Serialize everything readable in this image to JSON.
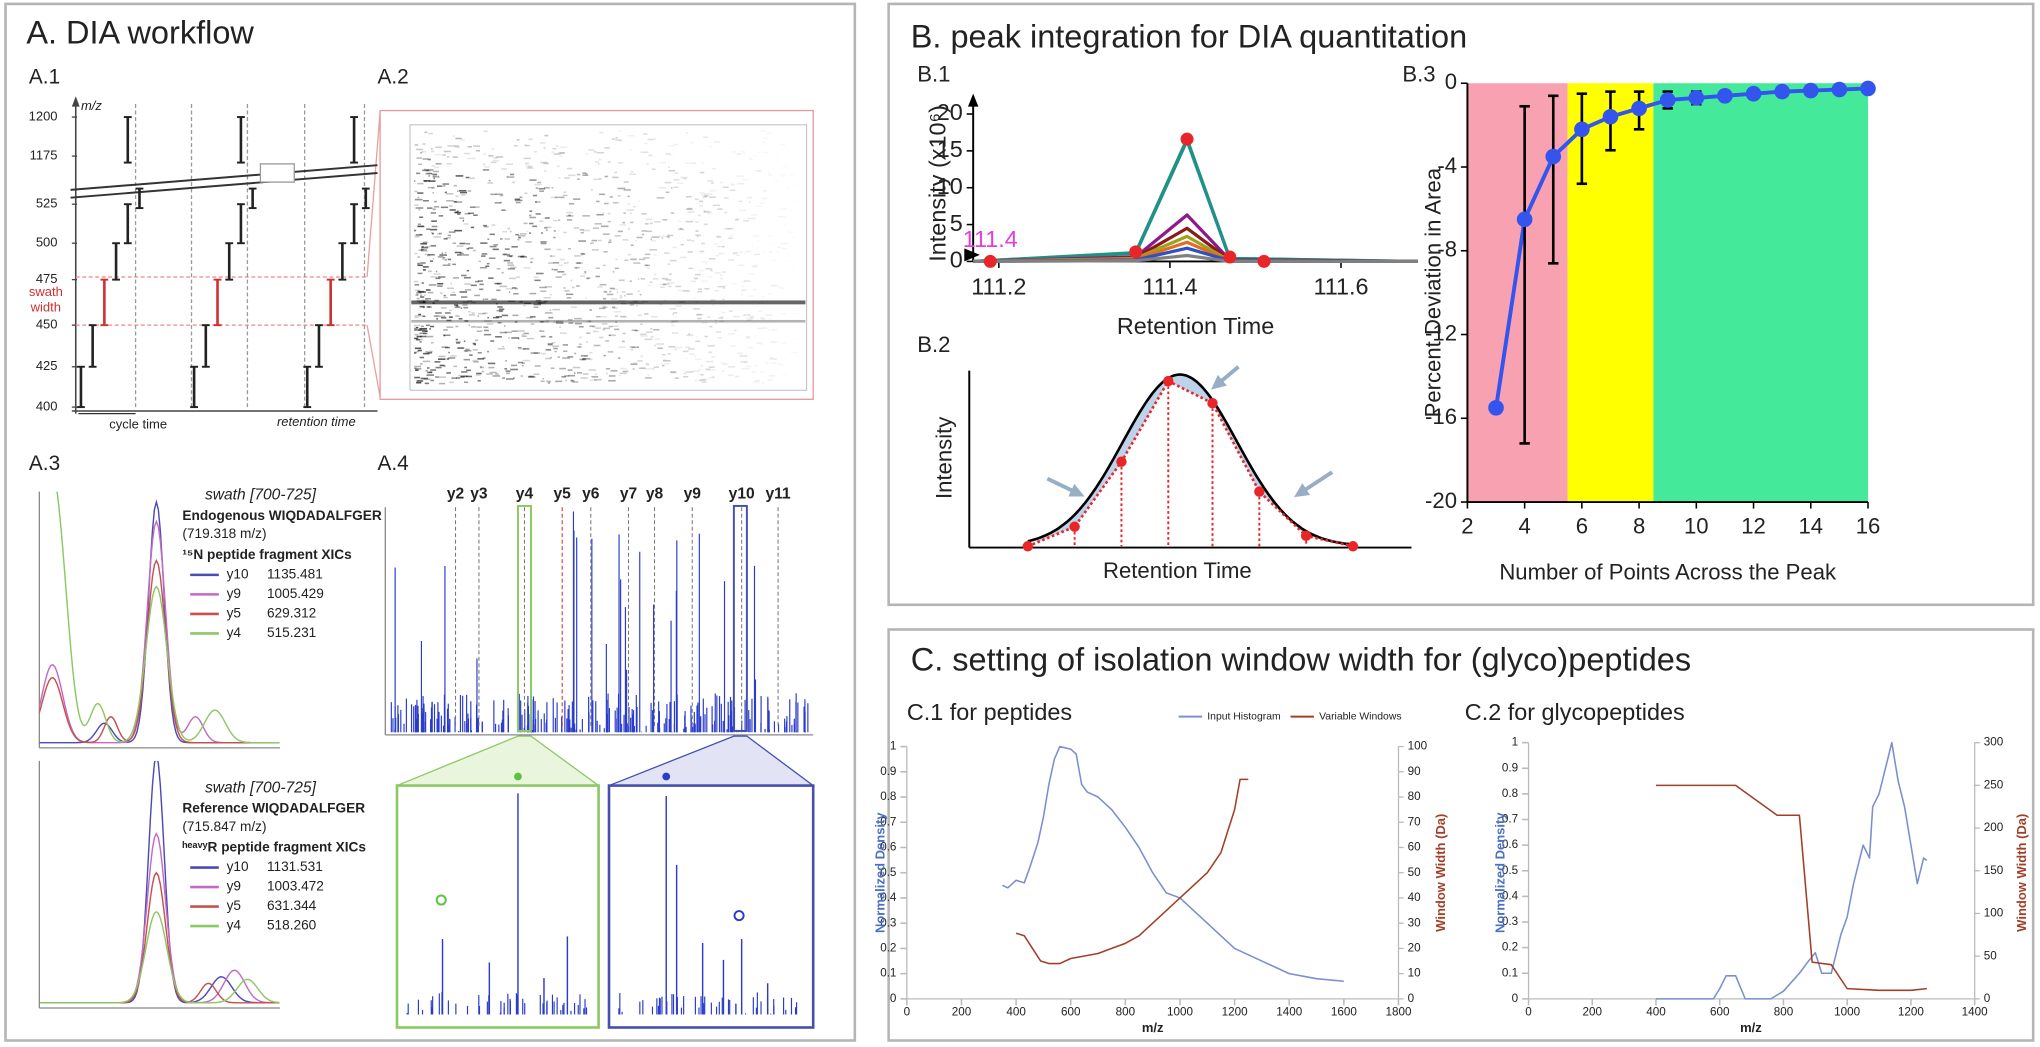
{
  "panels": {
    "A": {
      "title": "A. DIA workflow",
      "labels": [
        "A.1",
        "A.2",
        "A.3",
        "A.4"
      ],
      "a1": {
        "axis_label": "m/z",
        "yticks": [
          400,
          425,
          450,
          475,
          500,
          525,
          1175,
          1200
        ],
        "swath": [
          "swath",
          "width"
        ],
        "cycle": "cycle time",
        "rt": "retention time"
      },
      "a3": [
        {
          "swath": "swath [700-725]",
          "peptide": "Endogenous WIQDADALFGER",
          "mz": "(719.318 m/z)",
          "xics": "¹⁵N peptide fragment XICs",
          "legend": [
            {
              "ion": "y10",
              "mz": "1135.481",
              "color": "#4b4bb5"
            },
            {
              "ion": "y9",
              "mz": "1005.429",
              "color": "#c46ac4"
            },
            {
              "ion": "y5",
              "mz": "629.312",
              "color": "#c4524f"
            },
            {
              "ion": "y4",
              "mz": "515.231",
              "color": "#8cc864"
            }
          ]
        },
        {
          "swath": "swath [700-725]",
          "peptide": "Reference WIQDADALFGER",
          "mz": "(715.847 m/z)",
          "xics": "ʰᵉᵃᵛʸR peptide fragment XICs",
          "legend": [
            {
              "ion": "y10",
              "mz": "1131.531",
              "color": "#4b4bb5"
            },
            {
              "ion": "y9",
              "mz": "1003.472",
              "color": "#c46ac4"
            },
            {
              "ion": "y5",
              "mz": "631.344",
              "color": "#c4524f"
            },
            {
              "ion": "y4",
              "mz": "518.260",
              "color": "#8cc864"
            }
          ]
        }
      ],
      "a4": {
        "ions": [
          "y2",
          "y3",
          "y4",
          "y5",
          "y6",
          "y7",
          "y8",
          "y9",
          "y10",
          "y11"
        ]
      }
    },
    "B": {
      "title": "B. peak integration for DIA quantitation",
      "labels": [
        "B.1",
        "B.2",
        "B.3"
      ],
      "b2": {
        "ylabel": "Intensity",
        "xlabel": "Retention Time"
      }
    },
    "C": {
      "title": "C. setting of isolation window width for (glyco)peptides"
    }
  },
  "chart_data": [
    {
      "type": "line",
      "xlabel": "Retention Time",
      "ylabel": "Intensity (x10⁶)",
      "xlim": [
        111.17,
        111.69
      ],
      "ylim": [
        0,
        21
      ],
      "xticks": [
        111.2,
        111.4,
        111.6
      ],
      "yticks": [
        0,
        5,
        10,
        15,
        20
      ],
      "annotation": "111.4",
      "annotation_color": "#e040e0",
      "series": [
        {
          "color": "#2e9e4a",
          "x": [
            111.17,
            111.36,
            111.42,
            111.47,
            111.69
          ],
          "values": [
            0,
            1.2,
            16.6,
            0.4,
            0
          ]
        },
        {
          "color": "#1f8f8f",
          "x": [
            111.17,
            111.36,
            111.42,
            111.47,
            111.69
          ],
          "values": [
            0,
            1.1,
            16.4,
            0.4,
            0
          ]
        },
        {
          "color": "#8b1a8b",
          "x": [
            111.17,
            111.36,
            111.42,
            111.47,
            111.69
          ],
          "values": [
            0,
            0.6,
            6.3,
            0.2,
            0
          ]
        },
        {
          "color": "#8b1a1a",
          "x": [
            111.17,
            111.36,
            111.42,
            111.47,
            111.69
          ],
          "values": [
            0,
            0.5,
            4.5,
            0.2,
            0
          ]
        },
        {
          "color": "#a0a020",
          "x": [
            111.17,
            111.36,
            111.42,
            111.47,
            111.69
          ],
          "values": [
            0,
            0.4,
            3.4,
            0.1,
            0
          ]
        },
        {
          "color": "#e07020",
          "x": [
            111.17,
            111.36,
            111.42,
            111.47,
            111.69
          ],
          "values": [
            0,
            0.3,
            2.6,
            0.1,
            0
          ]
        },
        {
          "color": "#3050c0",
          "x": [
            111.17,
            111.36,
            111.42,
            111.47,
            111.69
          ],
          "values": [
            0,
            0.2,
            1.8,
            0.1,
            0
          ]
        },
        {
          "color": "#808080",
          "x": [
            111.17,
            111.36,
            111.42,
            111.47,
            111.69
          ],
          "values": [
            0,
            0.1,
            0.8,
            0,
            0
          ]
        },
        {
          "color": "#e8262a",
          "x": [
            111.19,
            111.36,
            111.42,
            111.47,
            111.51
          ],
          "values": [
            0,
            1.3,
            16.6,
            0.6,
            0
          ],
          "marker": true,
          "line": false
        }
      ]
    },
    {
      "type": "line",
      "xlabel": "Number of Points Across the Peak",
      "ylabel": "Percent Deviation in Area",
      "xlim": [
        2,
        16
      ],
      "ylim": [
        -20,
        0
      ],
      "xticks": [
        2,
        4,
        6,
        8,
        10,
        12,
        14,
        16
      ],
      "yticks": [
        0,
        -4,
        -8,
        -12,
        -16,
        -20
      ],
      "regions": [
        {
          "from": 2,
          "to": 5.5,
          "color": "#f7a1b1"
        },
        {
          "from": 5.5,
          "to": 8.5,
          "color": "#ffff00"
        },
        {
          "from": 8.5,
          "to": 16,
          "color": "#44ea9a"
        }
      ],
      "series": [
        {
          "color": "#3355ee",
          "marker": true,
          "x": [
            3,
            4,
            5,
            6,
            7,
            8,
            9,
            10,
            11,
            12,
            13,
            14,
            15,
            16
          ],
          "values": [
            -15.5,
            -6.5,
            -3.5,
            -2.2,
            -1.6,
            -1.2,
            -0.8,
            -0.7,
            -0.6,
            -0.5,
            -0.4,
            -0.35,
            -0.3,
            -0.25
          ],
          "error_low": [
            null,
            10.7,
            5.1,
            2.6,
            1.6,
            1.0,
            0.4,
            0.3,
            0.2,
            0.2,
            0.1,
            0.1,
            0.1,
            0.1
          ],
          "error_high": [
            null,
            5.4,
            2.9,
            1.7,
            1.2,
            0.8,
            0.4,
            0.3,
            0.2,
            0.2,
            0.1,
            0.1,
            0.1,
            0.1
          ]
        }
      ]
    },
    {
      "type": "line",
      "title": "C.1 for peptides",
      "xlabel": "m/z",
      "ylabel": "Normalized  Density",
      "y2label": "Window Width (Da)",
      "ylabel_color": "#4a6fc0",
      "y2label_color": "#a0402a",
      "legend": "top",
      "xlim": [
        0,
        1800
      ],
      "xticks": [
        0,
        200,
        400,
        600,
        800,
        1000,
        1200,
        1400,
        1600,
        1800
      ],
      "ylim": [
        0,
        1
      ],
      "yticks": [
        0,
        0.1,
        0.2,
        0.3,
        0.4,
        0.5,
        0.6,
        0.7,
        0.8,
        0.9,
        1
      ],
      "y2lim": [
        0,
        100
      ],
      "y2ticks": [
        0,
        10,
        20,
        30,
        40,
        50,
        60,
        70,
        80,
        90,
        100
      ],
      "series": [
        {
          "name": "Input Histogram",
          "color": "#7b8fcf",
          "x": [
            350,
            370,
            400,
            430,
            450,
            480,
            500,
            520,
            540,
            560,
            600,
            620,
            640,
            660,
            700,
            750,
            800,
            850,
            900,
            950,
            1000,
            1050,
            1100,
            1150,
            1200,
            1300,
            1400,
            1500,
            1600
          ],
          "values": [
            0.45,
            0.44,
            0.47,
            0.46,
            0.52,
            0.62,
            0.72,
            0.85,
            0.95,
            1,
            0.99,
            0.97,
            0.85,
            0.82,
            0.8,
            0.75,
            0.68,
            0.6,
            0.5,
            0.42,
            0.4,
            0.35,
            0.3,
            0.25,
            0.2,
            0.15,
            0.1,
            0.08,
            0.07
          ]
        },
        {
          "name": "Variable Windows",
          "color": "#a0402a",
          "axis": "y2",
          "x": [
            400,
            430,
            460,
            490,
            520,
            560,
            600,
            650,
            700,
            750,
            800,
            850,
            900,
            950,
            1000,
            1050,
            1100,
            1150,
            1200,
            1220,
            1250
          ],
          "values": [
            26,
            25,
            20,
            15,
            14,
            14,
            16,
            17,
            18,
            20,
            22,
            25,
            30,
            35,
            40,
            45,
            50,
            58,
            75,
            87,
            87
          ]
        }
      ]
    },
    {
      "type": "line",
      "title": "C.2 for glycopeptides",
      "xlabel": "m/z",
      "ylabel": "Normalized  Density",
      "y2label": "Window Width (Da)",
      "ylabel_color": "#4a6fc0",
      "y2label_color": "#a0402a",
      "xlim": [
        0,
        1400
      ],
      "xticks": [
        0,
        200,
        400,
        600,
        800,
        1000,
        1200,
        1400
      ],
      "ylim": [
        0,
        1
      ],
      "yticks": [
        0,
        0.1,
        0.2,
        0.3,
        0.4,
        0.5,
        0.6,
        0.7,
        0.8,
        0.9,
        1
      ],
      "y2lim": [
        0,
        300
      ],
      "y2ticks": [
        0,
        50,
        100,
        150,
        200,
        250,
        300
      ],
      "series": [
        {
          "color": "#7b8fcf",
          "x": [
            400,
            580,
            600,
            620,
            650,
            680,
            760,
            800,
            850,
            880,
            900,
            920,
            950,
            980,
            1000,
            1020,
            1050,
            1070,
            1080,
            1100,
            1120,
            1140,
            1160,
            1180,
            1200,
            1220,
            1240,
            1250
          ],
          "values": [
            0,
            0,
            0.04,
            0.09,
            0.09,
            0,
            0,
            0.03,
            0.1,
            0.15,
            0.18,
            0.1,
            0.1,
            0.25,
            0.32,
            0.45,
            0.6,
            0.55,
            0.75,
            0.8,
            0.9,
            1,
            0.85,
            0.75,
            0.6,
            0.45,
            0.55,
            0.54
          ]
        },
        {
          "color": "#a0402a",
          "axis": "y2",
          "x": [
            400,
            650,
            780,
            850,
            890,
            950,
            1000,
            1100,
            1200,
            1250
          ],
          "values": [
            250,
            250,
            215,
            215,
            43,
            40,
            12,
            10,
            10,
            12
          ]
        }
      ]
    }
  ]
}
